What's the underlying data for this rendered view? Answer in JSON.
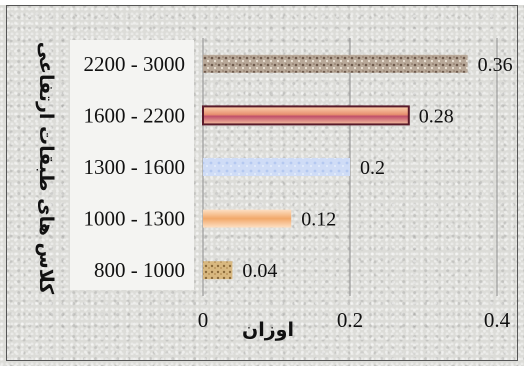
{
  "chart_data": {
    "type": "bar",
    "orientation": "horizontal",
    "categories": [
      "800 - 1000",
      "1000 - 1300",
      "1300 - 1600",
      "1600 - 2200",
      "2200 - 3000"
    ],
    "values": [
      0.04,
      0.12,
      0.2,
      0.28,
      0.36
    ],
    "data_labels": [
      "0.04",
      "0.12",
      "0.2",
      "0.28",
      "0.36"
    ],
    "xlabel": "اوزان",
    "ylabel": "کلاس های طبقات ارتفاعی",
    "xlim": [
      0,
      0.4
    ],
    "xticks": [
      "0",
      "0.2",
      "0.4"
    ],
    "grid": "vertical",
    "bar_fills": [
      "#c9a56a",
      "#f2b27c",
      "#c8d8f4",
      "#e8a07a",
      "#a89482"
    ]
  }
}
